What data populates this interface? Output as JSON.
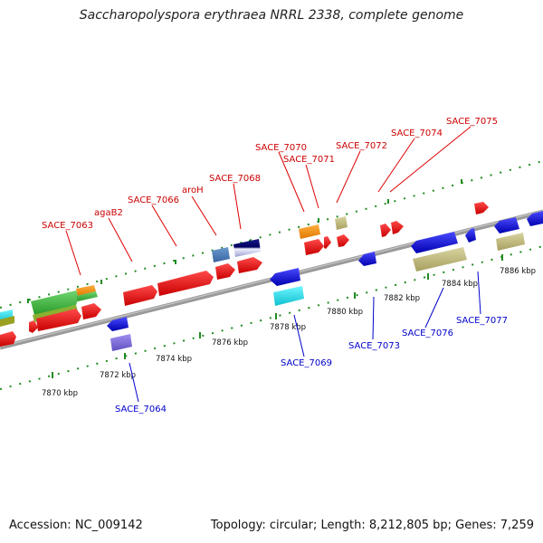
{
  "title": "Saccharopolyspora erythraea NRRL 2338, complete genome",
  "footer": {
    "accession": "Accession: NC_009142",
    "summary": "Topology: circular; Length: 8,212,805 bp; Genes: 7,259"
  },
  "colors": {
    "backbone": "#9a9a9a",
    "forward_label": "#cc0000",
    "reverse_label": "#0000cc",
    "tick": "#228b22"
  },
  "scale_labels": [
    "7870 kbp",
    "7872 kbp",
    "7874 kbp",
    "7876 kbp",
    "7878 kbp",
    "7880 kbp",
    "7882 kbp",
    "7884 kbp",
    "7886 kbp"
  ],
  "forward_genes": [
    {
      "name": "SACE_7063"
    },
    {
      "name": "agaB2"
    },
    {
      "name": "SACE_7066"
    },
    {
      "name": "aroH"
    },
    {
      "name": "SACE_7068"
    },
    {
      "name": "SACE_7070"
    },
    {
      "name": "SACE_7071"
    },
    {
      "name": "SACE_7072"
    },
    {
      "name": "SACE_7074"
    },
    {
      "name": "SACE_7075"
    }
  ],
  "reverse_genes": [
    {
      "name": "SACE_7064"
    },
    {
      "name": "SACE_7069"
    },
    {
      "name": "SACE_7073"
    },
    {
      "name": "SACE_7076"
    },
    {
      "name": "SACE_7077"
    }
  ]
}
